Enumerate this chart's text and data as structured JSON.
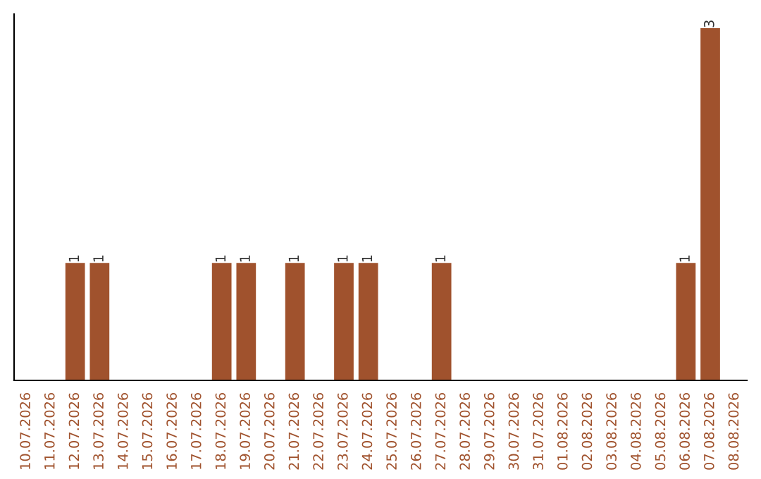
{
  "chart_data": {
    "type": "bar",
    "categories": [
      "10.07.2026",
      "11.07.2026",
      "12.07.2026",
      "13.07.2026",
      "14.07.2026",
      "15.07.2026",
      "16.07.2026",
      "17.07.2026",
      "18.07.2026",
      "19.07.2026",
      "20.07.2026",
      "21.07.2026",
      "22.07.2026",
      "23.07.2026",
      "24.07.2026",
      "25.07.2026",
      "26.07.2026",
      "27.07.2026",
      "28.07.2026",
      "29.07.2026",
      "30.07.2026",
      "31.07.2026",
      "01.08.2026",
      "02.08.2026",
      "03.08.2026",
      "04.08.2026",
      "05.08.2026",
      "06.08.2026",
      "07.08.2026",
      "08.08.2026"
    ],
    "values": [
      0,
      0,
      1,
      1,
      0,
      0,
      0,
      0,
      1,
      1,
      0,
      1,
      0,
      1,
      1,
      0,
      0,
      1,
      0,
      0,
      0,
      0,
      0,
      0,
      0,
      0,
      0,
      1,
      3,
      0
    ],
    "value_labels": [
      null,
      null,
      "1",
      "1",
      null,
      null,
      null,
      null,
      "1",
      "1",
      null,
      "1",
      null,
      "1",
      "1",
      null,
      null,
      "1",
      null,
      null,
      null,
      null,
      null,
      null,
      null,
      null,
      null,
      "1",
      "3",
      null
    ],
    "color": "#a0522d",
    "tick_labels": "x",
    "grid": false,
    "legend": false
  }
}
